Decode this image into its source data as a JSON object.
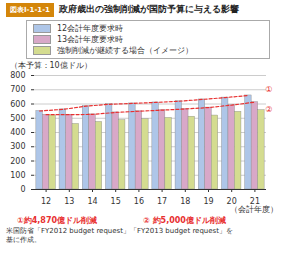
{
  "chart_data": {
    "type": "bar",
    "title": "政府歳出の強制削減が国防予算に与える影響",
    "annotations": [
      "図表I-1-1-1",
      "①",
      "②",
      "①約4,870億ドル削減",
      "② 約5,000億ドル削減",
      "米国防省「FY2012 budget request」「FY2013 budget request」を",
      "基に作成。"
    ],
    "xlabel": "（会計年度）",
    "ylabel": "（本予算：10億ドル）",
    "categories": [
      "12",
      "13",
      "14",
      "15",
      "16",
      "17",
      "18",
      "19",
      "20",
      "21"
    ],
    "series": [
      {
        "name": "12会計年度要求時",
        "color": "#aec6e8",
        "values": [
          551,
          562,
          585,
          598,
          604,
          611,
          619,
          632,
          645,
          660
        ]
      },
      {
        "name": "13会計年度要求時",
        "color": "#d8a8c8",
        "values": [
          525,
          525,
          527,
          541,
          549,
          557,
          565,
          575,
          592,
          613
        ]
      },
      {
        "name": "強制削減が継続する場合（イメージ）",
        "color": "#d4dc90",
        "values": [
          520,
          460,
          474,
          487,
          494,
          502,
          511,
          519,
          545,
          557
        ]
      },
      {
        "type": "line",
        "line_style": "dashed",
        "color": "#e83030",
        "values": [
          551,
          562,
          585,
          598,
          604,
          611,
          619,
          632,
          645,
          660
        ]
      },
      {
        "type": "line",
        "line_style": "dashed",
        "color": "#e83030",
        "values": [
          525,
          525,
          527,
          541,
          549,
          557,
          565,
          575,
          592,
          613
        ]
      }
    ],
    "ylim": [
      0,
      800
    ],
    "yticks": [
      0,
      100,
      200,
      300,
      400,
      500,
      600,
      700,
      800
    ],
    "grid": true,
    "legend": "top"
  }
}
